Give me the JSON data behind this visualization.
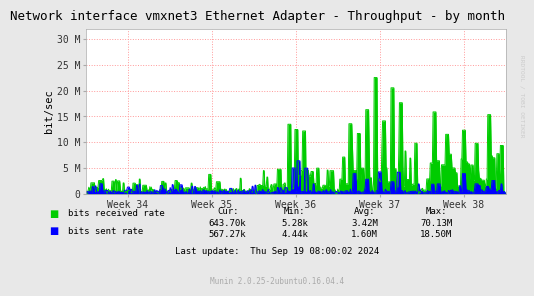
{
  "title": "Network interface vmxnet3 Ethernet Adapter - Throughput - by month",
  "ylabel": "bit/sec",
  "watermark": "RRDTOOL / TOBI OETIKER",
  "munin_version": "Munin 2.0.25-2ubuntu0.16.04.4",
  "last_update": "Last update:  Thu Sep 19 08:00:02 2024",
  "xtick_labels": [
    "Week 34",
    "Week 35",
    "Week 36",
    "Week 37",
    "Week 38"
  ],
  "ytick_labels": [
    "0",
    "5 M",
    "10 M",
    "15 M",
    "20 M",
    "25 M",
    "30 M"
  ],
  "yticks": [
    0,
    5000000,
    10000000,
    15000000,
    20000000,
    25000000,
    30000000
  ],
  "ylim": [
    0,
    32000000
  ],
  "xlim": [
    0,
    5
  ],
  "week_positions": [
    0.5,
    1.5,
    2.5,
    3.5,
    4.5
  ],
  "legend": [
    {
      "label": "bits received rate",
      "color": "#00cc00"
    },
    {
      "label": "bits sent rate",
      "color": "#0000ff"
    }
  ],
  "stats_headers": [
    "Cur:",
    "Min:",
    "Avg:",
    "Max:"
  ],
  "stats_recv": [
    "643.70k",
    "5.28k",
    "3.42M",
    "70.13M"
  ],
  "stats_sent": [
    "567.27k",
    "4.44k",
    "1.60M",
    "18.50M"
  ],
  "bg_color": "#ffffff",
  "outer_bg_color": "#e8e8e8",
  "plot_bg_color": "#ffffff",
  "grid_color": "#ff9999",
  "title_color": "#000000",
  "watermark_color": "#cccccc",
  "munin_color": "#aaaaaa",
  "label_color": "#555555"
}
